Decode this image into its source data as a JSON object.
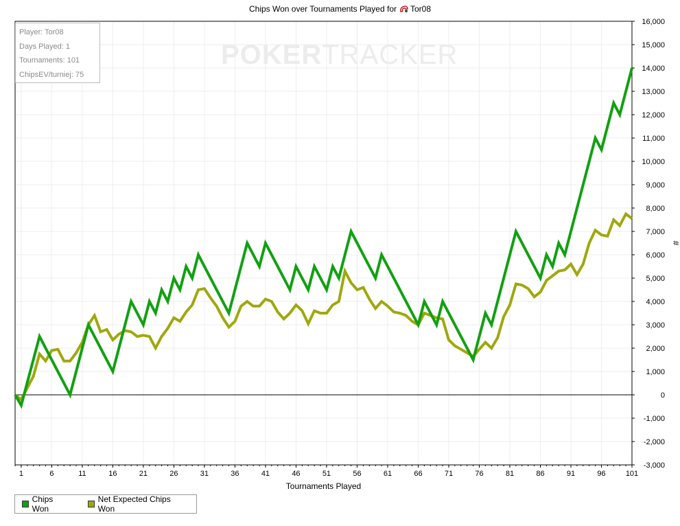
{
  "colors": {
    "chips_won": "#12a012",
    "net_expected": "#9fa80e",
    "grid": "#eeeeee",
    "axis": "#000000"
  },
  "title": {
    "text": "Chips Won over Tournaments Played for",
    "player": "Tor08",
    "player_icon": "player-icon"
  },
  "info": {
    "player": "Player: Tor08",
    "days": "Days Played: 1",
    "tournaments": "Tournaments: 101",
    "chipsev": "ChipsEV/turniej: 75"
  },
  "watermark": {
    "bold": "POKER",
    "thin": "TRACKER"
  },
  "legend": {
    "chips_won": "Chips Won",
    "net_expected": "Net Expected Chips Won"
  },
  "chart_data": {
    "type": "line",
    "title": "Chips Won over Tournaments Played for Tor08",
    "xlabel": "Tournaments Played",
    "ylabel": "#",
    "xlim": [
      0,
      101
    ],
    "ylim": [
      -3000,
      16000
    ],
    "xticks": [
      1,
      6,
      11,
      16,
      21,
      26,
      31,
      36,
      41,
      46,
      51,
      56,
      61,
      66,
      71,
      76,
      81,
      86,
      91,
      96,
      101
    ],
    "yticks": [
      -3000,
      -2000,
      -1000,
      0,
      1000,
      2000,
      3000,
      4000,
      5000,
      6000,
      7000,
      8000,
      9000,
      10000,
      11000,
      12000,
      13000,
      14000,
      15000,
      16000
    ],
    "ytick_labels": [
      "-3,000",
      "-2,000",
      "-1,000",
      "0",
      "1,000",
      "2,000",
      "3,000",
      "4,000",
      "5,000",
      "6,000",
      "7,000",
      "8,000",
      "9,000",
      "10,000",
      "11,000",
      "12,000",
      "13,000",
      "14,000",
      "15,000",
      "16,000"
    ],
    "grid": true,
    "legend_position": "bottom-left",
    "series": [
      {
        "name": "Chips Won",
        "color": "#12a012",
        "points": [
          [
            0,
            0
          ],
          [
            1,
            -450
          ],
          [
            4,
            2500
          ],
          [
            9,
            0
          ],
          [
            12,
            3000
          ],
          [
            16,
            1000
          ],
          [
            19,
            4000
          ],
          [
            21,
            3000
          ],
          [
            22,
            4000
          ],
          [
            23,
            3500
          ],
          [
            24,
            4500
          ],
          [
            25,
            4000
          ],
          [
            26,
            5000
          ],
          [
            27,
            4500
          ],
          [
            28,
            5500
          ],
          [
            29,
            5000
          ],
          [
            30,
            6000
          ],
          [
            35,
            3500
          ],
          [
            38,
            6500
          ],
          [
            40,
            5500
          ],
          [
            41,
            6500
          ],
          [
            45,
            4500
          ],
          [
            46,
            5500
          ],
          [
            47,
            5000
          ],
          [
            48,
            4500
          ],
          [
            49,
            5500
          ],
          [
            51,
            4500
          ],
          [
            52,
            5500
          ],
          [
            53,
            5000
          ],
          [
            55,
            7000
          ],
          [
            59,
            5000
          ],
          [
            60,
            6000
          ],
          [
            66,
            3000
          ],
          [
            67,
            4000
          ],
          [
            69,
            3000
          ],
          [
            70,
            4000
          ],
          [
            75,
            1500
          ],
          [
            77,
            3500
          ],
          [
            78,
            3000
          ],
          [
            82,
            7000
          ],
          [
            86,
            5000
          ],
          [
            87,
            6000
          ],
          [
            88,
            5500
          ],
          [
            89,
            6500
          ],
          [
            90,
            6000
          ],
          [
            95,
            11000
          ],
          [
            96,
            10500
          ],
          [
            98,
            12500
          ],
          [
            99,
            12000
          ],
          [
            101,
            14000
          ]
        ]
      },
      {
        "name": "Net Expected Chips Won",
        "color": "#9fa80e",
        "points": [
          [
            0,
            0
          ],
          [
            1,
            -200
          ],
          [
            2,
            300
          ],
          [
            3,
            800
          ],
          [
            4,
            1750
          ],
          [
            5,
            1450
          ],
          [
            6,
            1900
          ],
          [
            7,
            1950
          ],
          [
            8,
            1450
          ],
          [
            9,
            1450
          ],
          [
            10,
            1800
          ],
          [
            11,
            2250
          ],
          [
            12,
            3000
          ],
          [
            13,
            3400
          ],
          [
            14,
            2700
          ],
          [
            15,
            2800
          ],
          [
            16,
            2350
          ],
          [
            17,
            2600
          ],
          [
            18,
            2750
          ],
          [
            19,
            2700
          ],
          [
            20,
            2500
          ],
          [
            21,
            2550
          ],
          [
            22,
            2500
          ],
          [
            23,
            2000
          ],
          [
            24,
            2500
          ],
          [
            25,
            2850
          ],
          [
            26,
            3300
          ],
          [
            27,
            3150
          ],
          [
            28,
            3550
          ],
          [
            29,
            3850
          ],
          [
            30,
            4500
          ],
          [
            31,
            4550
          ],
          [
            32,
            4150
          ],
          [
            33,
            3800
          ],
          [
            34,
            3300
          ],
          [
            35,
            2900
          ],
          [
            36,
            3150
          ],
          [
            37,
            3800
          ],
          [
            38,
            4000
          ],
          [
            39,
            3800
          ],
          [
            40,
            3800
          ],
          [
            41,
            4100
          ],
          [
            42,
            4000
          ],
          [
            43,
            3550
          ],
          [
            44,
            3250
          ],
          [
            45,
            3500
          ],
          [
            46,
            3850
          ],
          [
            47,
            3600
          ],
          [
            48,
            3050
          ],
          [
            49,
            3600
          ],
          [
            50,
            3500
          ],
          [
            51,
            3500
          ],
          [
            52,
            3850
          ],
          [
            53,
            4000
          ],
          [
            54,
            5300
          ],
          [
            55,
            4800
          ],
          [
            56,
            4500
          ],
          [
            57,
            4600
          ],
          [
            58,
            4100
          ],
          [
            59,
            3700
          ],
          [
            60,
            4000
          ],
          [
            61,
            3800
          ],
          [
            62,
            3550
          ],
          [
            63,
            3500
          ],
          [
            64,
            3400
          ],
          [
            65,
            3150
          ],
          [
            66,
            3000
          ],
          [
            67,
            3500
          ],
          [
            68,
            3400
          ],
          [
            69,
            3300
          ],
          [
            70,
            3250
          ],
          [
            71,
            2350
          ],
          [
            72,
            2100
          ],
          [
            73,
            1950
          ],
          [
            74,
            1800
          ],
          [
            75,
            1650
          ],
          [
            76,
            1950
          ],
          [
            77,
            2250
          ],
          [
            78,
            2000
          ],
          [
            79,
            2450
          ],
          [
            80,
            3350
          ],
          [
            81,
            3850
          ],
          [
            82,
            4750
          ],
          [
            83,
            4700
          ],
          [
            84,
            4550
          ],
          [
            85,
            4200
          ],
          [
            86,
            4400
          ],
          [
            87,
            4900
          ],
          [
            88,
            5100
          ],
          [
            89,
            5300
          ],
          [
            90,
            5350
          ],
          [
            91,
            5600
          ],
          [
            92,
            5150
          ],
          [
            93,
            5600
          ],
          [
            94,
            6500
          ],
          [
            95,
            7050
          ],
          [
            96,
            6850
          ],
          [
            97,
            6800
          ],
          [
            98,
            7500
          ],
          [
            99,
            7250
          ],
          [
            100,
            7750
          ],
          [
            101,
            7550
          ]
        ]
      }
    ]
  }
}
